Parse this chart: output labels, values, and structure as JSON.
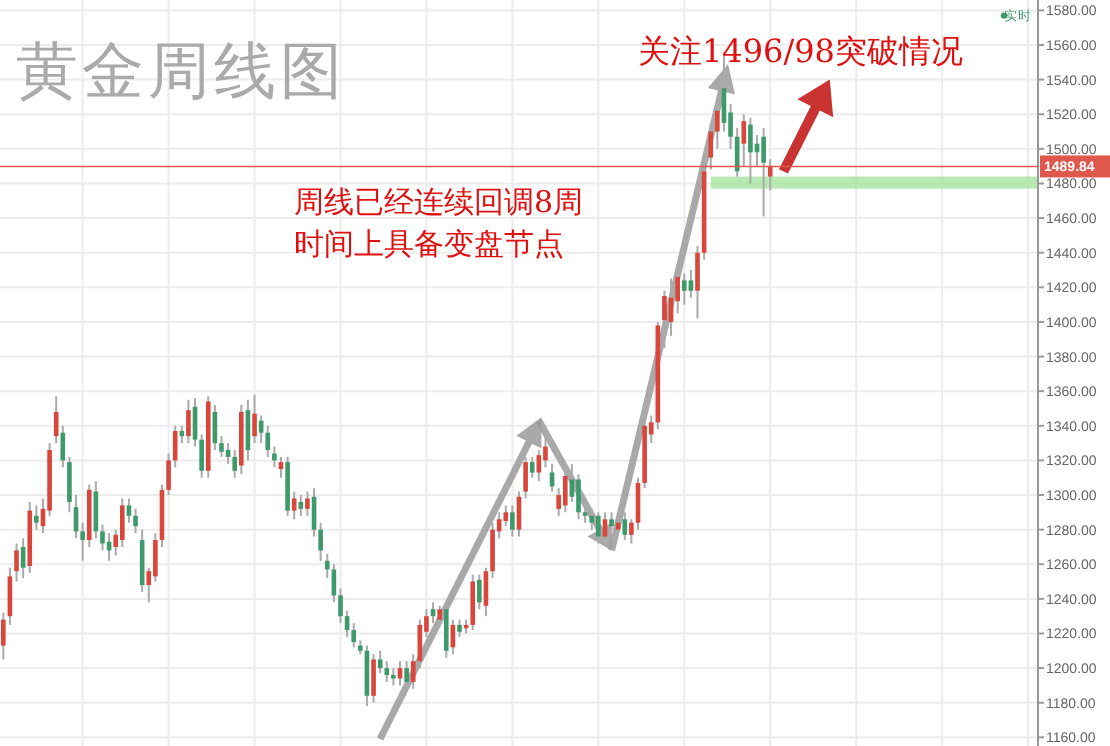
{
  "chart_data": {
    "type": "candlestick",
    "title": "黄金周线图",
    "tick_labels": "y",
    "grid": true,
    "categories": [
      null,
      null,
      null,
      null,
      null,
      null,
      null,
      null,
      null,
      null,
      null,
      null,
      null,
      null,
      null,
      null,
      null,
      null,
      null,
      null,
      null,
      null,
      null,
      null,
      null,
      null,
      null,
      null,
      null,
      null,
      null,
      null,
      null,
      null,
      null,
      null,
      null,
      null,
      null,
      null,
      null,
      null,
      null,
      null,
      null,
      null,
      null,
      null,
      null,
      null,
      null,
      null,
      null,
      null,
      null,
      null,
      null,
      null,
      null,
      null,
      null,
      null,
      null,
      null,
      null,
      null,
      null,
      null,
      null,
      null,
      null,
      null,
      null,
      null,
      null,
      null,
      null,
      null,
      null,
      null,
      null,
      null,
      null,
      null,
      null,
      null,
      null,
      null,
      null,
      null,
      null,
      null,
      null,
      null,
      null,
      null,
      null,
      null,
      null,
      null,
      null,
      null,
      null,
      null,
      null,
      null,
      null,
      null,
      null,
      null,
      null,
      null,
      null,
      null,
      null,
      null,
      null,
      null,
      null,
      null,
      null,
      null,
      null,
      null,
      null,
      null,
      null,
      null,
      null,
      null,
      null,
      null,
      null,
      null,
      null,
      null,
      null,
      null,
      null,
      null,
      null,
      null,
      null,
      null,
      null,
      null,
      null,
      null,
      null,
      null,
      null,
      null,
      null,
      null,
      null,
      null,
      null
    ],
    "ohlc": [
      [
        1213,
        1232,
        1205,
        1228
      ],
      [
        1230,
        1258,
        1225,
        1253
      ],
      [
        1256,
        1272,
        1250,
        1268
      ],
      [
        1270,
        1275,
        1252,
        1258
      ],
      [
        1259,
        1296,
        1255,
        1291
      ],
      [
        1288,
        1294,
        1280,
        1284
      ],
      [
        1282,
        1298,
        1278,
        1292
      ],
      [
        1291,
        1330,
        1288,
        1326
      ],
      [
        1334,
        1357,
        1330,
        1348
      ],
      [
        1336,
        1340,
        1316,
        1320
      ],
      [
        1319,
        1322,
        1290,
        1296
      ],
      [
        1293,
        1300,
        1275,
        1279
      ],
      [
        1279,
        1284,
        1262,
        1274
      ],
      [
        1274,
        1306,
        1270,
        1303
      ],
      [
        1302,
        1308,
        1275,
        1279
      ],
      [
        1279,
        1283,
        1268,
        1272
      ],
      [
        1273,
        1278,
        1262,
        1268
      ],
      [
        1270,
        1280,
        1265,
        1277
      ],
      [
        1274,
        1298,
        1270,
        1294
      ],
      [
        1294,
        1298,
        1284,
        1288
      ],
      [
        1288,
        1292,
        1278,
        1282
      ],
      [
        1274,
        1280,
        1244,
        1248
      ],
      [
        1248,
        1258,
        1238,
        1256
      ],
      [
        1253,
        1278,
        1250,
        1274
      ],
      [
        1274,
        1306,
        1270,
        1303
      ],
      [
        1303,
        1324,
        1300,
        1320
      ],
      [
        1320,
        1340,
        1316,
        1337
      ],
      [
        1337,
        1340,
        1330,
        1334
      ],
      [
        1334,
        1355,
        1330,
        1349
      ],
      [
        1351,
        1356,
        1328,
        1332
      ],
      [
        1332,
        1335,
        1310,
        1314
      ],
      [
        1314,
        1357,
        1310,
        1354
      ],
      [
        1348,
        1352,
        1326,
        1330
      ],
      [
        1330,
        1334,
        1322,
        1325
      ],
      [
        1326,
        1330,
        1318,
        1322
      ],
      [
        1322,
        1326,
        1310,
        1314
      ],
      [
        1317,
        1352,
        1312,
        1348
      ],
      [
        1349,
        1355,
        1320,
        1326
      ],
      [
        1334,
        1358,
        1330,
        1347
      ],
      [
        1343,
        1346,
        1330,
        1336
      ],
      [
        1336,
        1340,
        1322,
        1326
      ],
      [
        1324,
        1328,
        1316,
        1320
      ],
      [
        1315,
        1322,
        1310,
        1319
      ],
      [
        1319,
        1322,
        1288,
        1291
      ],
      [
        1291,
        1302,
        1286,
        1298
      ],
      [
        1296,
        1300,
        1288,
        1292
      ],
      [
        1292,
        1302,
        1288,
        1298
      ],
      [
        1299,
        1304,
        1276,
        1280
      ],
      [
        1280,
        1284,
        1262,
        1268
      ],
      [
        1262,
        1266,
        1252,
        1257
      ],
      [
        1257,
        1260,
        1238,
        1242
      ],
      [
        1242,
        1246,
        1226,
        1230
      ],
      [
        1230,
        1233,
        1218,
        1222
      ],
      [
        1222,
        1226,
        1212,
        1215
      ],
      [
        1213,
        1216,
        1208,
        1210
      ],
      [
        1210,
        1213,
        1178,
        1184
      ],
      [
        1184,
        1208,
        1180,
        1205
      ],
      [
        1205,
        1210,
        1197,
        1200
      ],
      [
        1200,
        1204,
        1192,
        1196
      ],
      [
        1196,
        1200,
        1190,
        1194
      ],
      [
        1194,
        1204,
        1190,
        1200
      ],
      [
        1200,
        1204,
        1188,
        1192
      ],
      [
        1192,
        1208,
        1188,
        1204
      ],
      [
        1204,
        1228,
        1200,
        1225
      ],
      [
        1221,
        1234,
        1218,
        1230
      ],
      [
        1234,
        1238,
        1226,
        1230
      ],
      [
        1228,
        1236,
        1224,
        1234
      ],
      [
        1234,
        1238,
        1206,
        1210
      ],
      [
        1212,
        1228,
        1208,
        1225
      ],
      [
        1225,
        1228,
        1218,
        1221
      ],
      [
        1223,
        1228,
        1220,
        1225
      ],
      [
        1225,
        1254,
        1222,
        1250
      ],
      [
        1251,
        1254,
        1234,
        1238
      ],
      [
        1236,
        1258,
        1230,
        1256
      ],
      [
        1256,
        1284,
        1252,
        1280
      ],
      [
        1279,
        1290,
        1275,
        1286
      ],
      [
        1285,
        1294,
        1282,
        1290
      ],
      [
        1290,
        1294,
        1276,
        1280
      ],
      [
        1280,
        1302,
        1276,
        1299
      ],
      [
        1302,
        1322,
        1298,
        1319
      ],
      [
        1319,
        1322,
        1310,
        1313
      ],
      [
        1313,
        1326,
        1308,
        1323
      ],
      [
        1320,
        1340,
        1316,
        1328
      ],
      [
        1313,
        1318,
        1302,
        1305
      ],
      [
        1292,
        1304,
        1288,
        1300
      ],
      [
        1294,
        1315,
        1290,
        1311
      ],
      [
        1309,
        1318,
        1296,
        1299
      ],
      [
        1309,
        1312,
        1286,
        1290
      ],
      [
        1290,
        1294,
        1284,
        1288
      ],
      [
        1288,
        1292,
        1280,
        1284
      ],
      [
        1288,
        1290,
        1272,
        1276
      ],
      [
        1276,
        1290,
        1272,
        1286
      ],
      [
        1286,
        1290,
        1280,
        1282
      ],
      [
        1280,
        1286,
        1278,
        1284
      ],
      [
        1286,
        1290,
        1274,
        1277
      ],
      [
        1277,
        1286,
        1272,
        1284
      ],
      [
        1284,
        1310,
        1280,
        1307
      ],
      [
        1307,
        1342,
        1304,
        1340
      ],
      [
        1335,
        1346,
        1330,
        1342
      ],
      [
        1342,
        1400,
        1338,
        1398
      ],
      [
        1401,
        1418,
        1385,
        1415
      ],
      [
        1400,
        1425,
        1392,
        1414
      ],
      [
        1412,
        1430,
        1405,
        1426
      ],
      [
        1424,
        1428,
        1410,
        1418
      ],
      [
        1424,
        1430,
        1414,
        1418
      ],
      [
        1418,
        1444,
        1402,
        1440
      ],
      [
        1440,
        1490,
        1436,
        1487
      ],
      [
        1495,
        1515,
        1488,
        1510
      ],
      [
        1510,
        1527,
        1500,
        1522
      ],
      [
        1535,
        1556,
        1510,
        1515
      ],
      [
        1521,
        1526,
        1500,
        1507
      ],
      [
        1507,
        1512,
        1484,
        1487
      ],
      [
        1503,
        1520,
        1490,
        1516
      ],
      [
        1514,
        1518,
        1480,
        1498
      ],
      [
        1503,
        1508,
        1490,
        1498
      ],
      [
        1507,
        1512,
        1461,
        1492
      ],
      [
        1484,
        1494,
        1476,
        1490
      ],
      null,
      null,
      null,
      null,
      null,
      null,
      null,
      null,
      null,
      null,
      null,
      null,
      null,
      null,
      null,
      null,
      null,
      null,
      null,
      null,
      null,
      null,
      null,
      null,
      null,
      null,
      null,
      null,
      null,
      null,
      null,
      null,
      null,
      null,
      null,
      null,
      null,
      null,
      null,
      null
    ],
    "colors": [
      "#d9473c",
      "#d9473c",
      "#d9473c",
      "#3e9a6b",
      "#d9473c",
      "#3e9a6b",
      "#d9473c",
      "#d9473c",
      "#d9473c",
      "#3e9a6b",
      "#3e9a6b",
      "#3e9a6b",
      "#3e9a6b",
      "#d9473c",
      "#3e9a6b",
      "#3e9a6b",
      "#3e9a6b",
      "#d9473c",
      "#d9473c",
      "#3e9a6b",
      "#3e9a6b",
      "#3e9a6b",
      "#d9473c",
      "#d9473c",
      "#d9473c",
      "#d9473c",
      "#d9473c",
      "#3e9a6b",
      "#d9473c",
      "#3e9a6b",
      "#3e9a6b",
      "#d9473c",
      "#3e9a6b",
      "#3e9a6b",
      "#3e9a6b",
      "#3e9a6b",
      "#d9473c",
      "#3e9a6b",
      "#d9473c",
      "#3e9a6b",
      "#3e9a6b",
      "#3e9a6b",
      "#d9473c",
      "#3e9a6b",
      "#d9473c",
      "#3e9a6b",
      "#d9473c",
      "#3e9a6b",
      "#3e9a6b",
      "#3e9a6b",
      "#3e9a6b",
      "#3e9a6b",
      "#3e9a6b",
      "#3e9a6b",
      "#3e9a6b",
      "#3e9a6b",
      "#d9473c",
      "#3e9a6b",
      "#3e9a6b",
      "#3e9a6b",
      "#d9473c",
      "#3e9a6b",
      "#d9473c",
      "#d9473c",
      "#d9473c",
      "#3e9a6b",
      "#d9473c",
      "#3e9a6b",
      "#d9473c",
      "#3e9a6b",
      "#d9473c",
      "#d9473c",
      "#3e9a6b",
      "#d9473c",
      "#d9473c",
      "#d9473c",
      "#d9473c",
      "#3e9a6b",
      "#d9473c",
      "#d9473c",
      "#3e9a6b",
      "#d9473c",
      "#d9473c",
      "#3e9a6b",
      "#d9473c",
      "#d9473c",
      "#3e9a6b",
      "#3e9a6b",
      "#3e9a6b",
      "#3e9a6b",
      "#3e9a6b",
      "#d9473c",
      "#3e9a6b",
      "#d9473c",
      "#3e9a6b",
      "#d9473c",
      "#d9473c",
      "#d9473c",
      "#d9473c",
      "#d9473c",
      "#d9473c",
      "#d9473c",
      "#d9473c",
      "#3e9a6b",
      "#3e9a6b",
      "#d9473c",
      "#d9473c",
      "#d9473c",
      "#d9473c",
      "#3e9a6b",
      "#3e9a6b",
      "#3e9a6b",
      "#d9473c",
      "#3e9a6b",
      "#3e9a6b",
      "#3e9a6b",
      "#d9473c",
      null,
      null,
      null,
      null,
      null,
      null,
      null,
      null,
      null,
      null,
      null,
      null,
      null,
      null,
      null,
      null,
      null,
      null,
      null,
      null,
      null,
      null,
      null,
      null,
      null,
      null,
      null,
      null,
      null,
      null,
      null,
      null,
      null,
      null,
      null,
      null,
      null,
      null,
      null,
      null
    ],
    "ylim": [
      1155,
      1586
    ],
    "yticks": [
      {
        "value": 1160,
        "label": "1160.00"
      },
      {
        "value": 1180,
        "label": "1180.00"
      },
      {
        "value": 1200,
        "label": "1200.00"
      },
      {
        "value": 1220,
        "label": "1220.00"
      },
      {
        "value": 1240,
        "label": "1240.00"
      },
      {
        "value": 1260,
        "label": "1260.00"
      },
      {
        "value": 1280,
        "label": "1280.00"
      },
      {
        "value": 1300,
        "label": "1300.00"
      },
      {
        "value": 1320,
        "label": "1320.00"
      },
      {
        "value": 1340,
        "label": "1340.00"
      },
      {
        "value": 1360,
        "label": "1360.00"
      },
      {
        "value": 1380,
        "label": "1380.00"
      },
      {
        "value": 1400,
        "label": "1400.00"
      },
      {
        "value": 1420,
        "label": "1420.00"
      },
      {
        "value": 1440,
        "label": "1440.00"
      },
      {
        "value": 1460,
        "label": "1460.00"
      },
      {
        "value": 1480,
        "label": "1480.00"
      },
      {
        "value": 1500,
        "label": "1500.00"
      },
      {
        "value": 1520,
        "label": "1520.00"
      },
      {
        "value": 1540,
        "label": "1540.00"
      },
      {
        "value": 1560,
        "label": "1560.00"
      },
      {
        "value": 1580,
        "label": "1580.00"
      }
    ],
    "ref_lines": [
      {
        "axis": "y",
        "value": 1489.84,
        "label": "1489.84",
        "color": "#e0574c"
      }
    ],
    "bands": [
      {
        "axis": "y",
        "from": 1477,
        "to": 1484,
        "color": "#a6e3a0"
      }
    ],
    "annotations": [
      "关注1496/98突破情况",
      "周线已经连续回调8周时间上具备变盘节点",
      "实时"
    ]
  }
}
